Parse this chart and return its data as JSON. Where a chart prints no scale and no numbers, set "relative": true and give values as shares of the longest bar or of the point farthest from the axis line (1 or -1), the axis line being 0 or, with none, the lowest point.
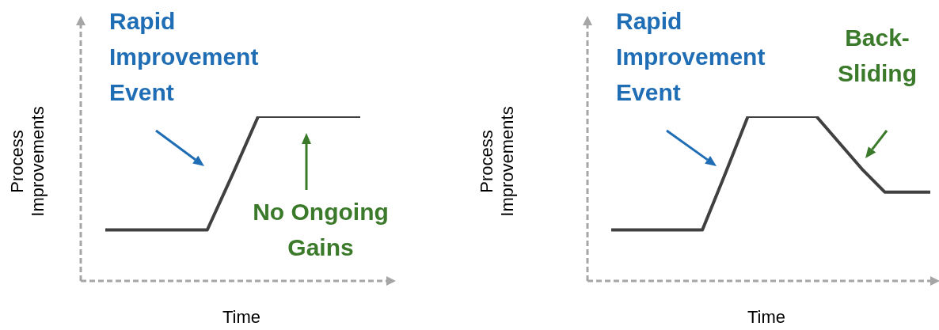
{
  "chart_data": [
    {
      "type": "line",
      "relative": true,
      "xlabel": "Time",
      "ylabel": "Process Improvements",
      "marker": "none",
      "line_style": "solid",
      "categories": [
        null,
        null,
        null,
        null,
        null,
        null,
        null,
        null,
        null,
        null,
        null
      ],
      "values": [
        0.31,
        0.31,
        0.31,
        0.31,
        0.31,
        0.65,
        1,
        1,
        1,
        1,
        1
      ],
      "color": "#404040",
      "annotations": [
        "Rapid Improvement Event",
        "No Ongoing Gains"
      ]
    },
    {
      "type": "line",
      "relative": true,
      "xlabel": "Time",
      "ylabel": "Process Improvements",
      "marker": "none",
      "line_style": "solid",
      "categories": [
        null,
        null,
        null,
        null,
        null,
        null,
        null,
        null,
        null,
        null,
        null,
        null,
        null,
        null,
        null
      ],
      "values": [
        0.31,
        0.31,
        0.31,
        0.31,
        0.31,
        0.65,
        1,
        1,
        1,
        1,
        0.84,
        0.68,
        0.54,
        0.54,
        0.54
      ],
      "color": "#404040",
      "annotations": [
        "Rapid Improvement Event",
        "Back-Sliding"
      ]
    }
  ]
}
